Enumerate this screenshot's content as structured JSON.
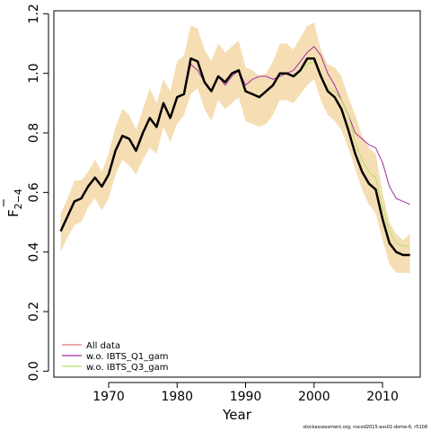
{
  "chart_data": {
    "type": "line",
    "xlabel": "Year",
    "ylabel": "F̅ 2–4",
    "ylabel_main": "F",
    "ylabel_sub": "2−4",
    "xlim": [
      1962,
      2015.5
    ],
    "ylim": [
      -0.02,
      1.21
    ],
    "x_ticks": [
      1970,
      1980,
      1990,
      2000,
      2010
    ],
    "x_tick_labels": [
      "1970",
      "1980",
      "1990",
      "2000",
      "2010"
    ],
    "y_ticks": [
      0.0,
      0.2,
      0.4,
      0.6,
      0.8,
      1.0,
      1.2
    ],
    "y_tick_labels": [
      "0.0",
      "0.2",
      "0.4",
      "0.6",
      "0.8",
      "1.0",
      "1.2"
    ],
    "legend_position": "bottom-left",
    "years": [
      1963,
      1964,
      1965,
      1966,
      1967,
      1968,
      1969,
      1970,
      1971,
      1972,
      1973,
      1974,
      1975,
      1976,
      1977,
      1978,
      1979,
      1980,
      1981,
      1982,
      1983,
      1984,
      1985,
      1986,
      1987,
      1988,
      1989,
      1990,
      1991,
      1992,
      1993,
      1994,
      1995,
      1996,
      1997,
      1998,
      1999,
      2000,
      2001,
      2002,
      2003,
      2004,
      2005,
      2006,
      2007,
      2008,
      2009,
      2010,
      2011,
      2012,
      2013,
      2014
    ],
    "band": {
      "color": "#F5DEB3",
      "upper": [
        0.53,
        0.58,
        0.64,
        0.64,
        0.67,
        0.71,
        0.67,
        0.73,
        0.82,
        0.88,
        0.86,
        0.81,
        0.88,
        0.95,
        0.9,
        0.98,
        0.94,
        1.04,
        1.06,
        1.16,
        1.15,
        1.08,
        1.04,
        1.1,
        1.07,
        1.09,
        1.11,
        1.02,
        1.01,
        0.99,
        1.0,
        1.04,
        1.1,
        1.1,
        1.08,
        1.12,
        1.16,
        1.17,
        1.08,
        1.03,
        1.02,
        0.99,
        0.92,
        0.86,
        0.79,
        0.75,
        0.73,
        0.6,
        0.5,
        0.46,
        0.44,
        0.46
      ],
      "lower": [
        0.4,
        0.45,
        0.49,
        0.5,
        0.55,
        0.58,
        0.54,
        0.58,
        0.66,
        0.71,
        0.69,
        0.66,
        0.71,
        0.75,
        0.73,
        0.82,
        0.77,
        0.83,
        0.86,
        0.93,
        0.95,
        0.88,
        0.84,
        0.91,
        0.88,
        0.9,
        0.92,
        0.84,
        0.83,
        0.82,
        0.83,
        0.86,
        0.91,
        0.91,
        0.9,
        0.93,
        0.96,
        0.98,
        0.91,
        0.86,
        0.84,
        0.81,
        0.75,
        0.68,
        0.61,
        0.56,
        0.53,
        0.44,
        0.36,
        0.33,
        0.33,
        0.33
      ]
    },
    "series": [
      {
        "name": "All data",
        "color": "#e5737f",
        "legend": true,
        "values": [
          0.47,
          0.52,
          0.57,
          0.58,
          0.62,
          0.65,
          0.62,
          0.66,
          0.74,
          0.79,
          0.78,
          0.74,
          0.8,
          0.85,
          0.82,
          0.9,
          0.85,
          0.92,
          0.93,
          1.05,
          1.04,
          0.97,
          0.94,
          0.99,
          0.97,
          1.0,
          1.01,
          0.94,
          0.93,
          0.92,
          0.94,
          0.96,
          1.0,
          1.0,
          0.99,
          1.01,
          1.05,
          1.05,
          0.99,
          0.94,
          0.92,
          0.88,
          0.81,
          0.73,
          0.67,
          0.63,
          0.61,
          0.51,
          0.43,
          0.4,
          0.39,
          0.39
        ]
      },
      {
        "name": "w.o. IBTS_Q1_gam",
        "color": "#a52ca5",
        "legend": true,
        "values": [
          0.47,
          0.52,
          0.57,
          0.58,
          0.62,
          0.65,
          0.62,
          0.66,
          0.74,
          0.79,
          0.78,
          0.74,
          0.8,
          0.85,
          0.82,
          0.9,
          0.85,
          0.92,
          0.93,
          1.03,
          1.01,
          0.97,
          0.94,
          0.99,
          0.96,
          0.99,
          1.01,
          0.96,
          0.98,
          0.99,
          0.99,
          0.98,
          0.99,
          1.0,
          1.01,
          1.04,
          1.07,
          1.09,
          1.06,
          1.0,
          0.96,
          0.91,
          0.86,
          0.8,
          0.78,
          0.76,
          0.75,
          0.7,
          0.62,
          0.58,
          0.57,
          0.56
        ]
      },
      {
        "name": "w.o. IBTS_Q3_gam",
        "color": "#b6e26a",
        "legend": true,
        "values": [
          0.47,
          0.52,
          0.57,
          0.58,
          0.62,
          0.65,
          0.62,
          0.66,
          0.74,
          0.79,
          0.78,
          0.74,
          0.8,
          0.85,
          0.82,
          0.9,
          0.85,
          0.92,
          0.93,
          1.05,
          1.04,
          0.97,
          0.94,
          0.99,
          0.97,
          1.0,
          1.01,
          0.94,
          0.93,
          0.92,
          0.94,
          0.96,
          1.0,
          1.0,
          0.99,
          1.01,
          1.03,
          1.04,
          0.99,
          0.95,
          0.94,
          0.91,
          0.86,
          0.77,
          0.71,
          0.67,
          0.65,
          0.55,
          0.47,
          0.43,
          0.42,
          0.42
        ]
      },
      {
        "color": "#000000",
        "legend": false,
        "values": [
          0.47,
          0.52,
          0.57,
          0.58,
          0.62,
          0.65,
          0.62,
          0.66,
          0.74,
          0.79,
          0.78,
          0.74,
          0.8,
          0.85,
          0.82,
          0.9,
          0.85,
          0.92,
          0.93,
          1.05,
          1.04,
          0.97,
          0.94,
          0.99,
          0.97,
          1.0,
          1.01,
          0.94,
          0.93,
          0.92,
          0.94,
          0.96,
          1.0,
          1.0,
          0.99,
          1.01,
          1.05,
          1.05,
          0.99,
          0.94,
          0.92,
          0.88,
          0.81,
          0.73,
          0.67,
          0.63,
          0.61,
          0.51,
          0.43,
          0.4,
          0.39,
          0.39
        ]
      }
    ],
    "footnote": "stockassessment.org, nscod2015-ass01-dome-6, r5108"
  }
}
